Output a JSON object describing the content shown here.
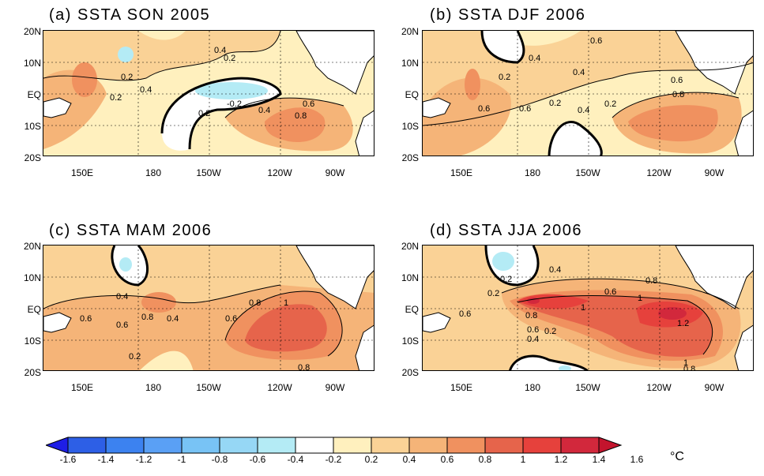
{
  "panels": [
    {
      "title": "(a) SSTA SON 2005"
    },
    {
      "title": "(b) SSTA DJF 2006"
    },
    {
      "title": "(c) SSTA MAM 2006"
    },
    {
      "title": "(d) SSTA JJA 2006"
    }
  ],
  "latitude_labels": [
    "20N",
    "10N",
    "EQ",
    "10S",
    "20S"
  ],
  "longitude_labels": [
    "150E",
    "180",
    "150W",
    "120W",
    "90W"
  ],
  "contour_labels": {
    "a": [
      "0.2",
      "0.4",
      "0.2",
      "0.4",
      "0.2",
      "-0.2",
      "0.2",
      "0.4",
      "0.6",
      "0.8"
    ],
    "b": [
      "0.6",
      "0.4",
      "0.2",
      "0.4",
      "0.6",
      "0.6",
      "0.2",
      "0.2",
      "0.4",
      "0.6",
      "0.8"
    ],
    "c": [
      "0.4",
      "0.6",
      "0.6",
      "0.8",
      "0.4",
      "0.8",
      "0.6",
      "1",
      "0.2",
      "0.8"
    ],
    "d": [
      "0.2",
      "0.2",
      "0.4",
      "0.6",
      "0.8",
      "1",
      "0.8",
      "1",
      "0.6",
      "0.4",
      "0.2",
      "1.2",
      "1",
      "0.8",
      "0.6"
    ]
  },
  "colorbar": {
    "tick_labels": [
      "-1.6",
      "-1.4",
      "-1.2",
      "-1",
      "-0.8",
      "-0.6",
      "-0.4",
      "-0.2",
      "0.2",
      "0.4",
      "0.6",
      "0.8",
      "1",
      "1.2",
      "1.4",
      "1.6"
    ],
    "unit": "°C",
    "colors": [
      "#1e1ee6",
      "#2d5fe6",
      "#3c82f0",
      "#5aa0f5",
      "#78c3f5",
      "#96d7f5",
      "#b4ebf5",
      "#ffffff",
      "#fff0be",
      "#fad296",
      "#f5b478",
      "#f0915f",
      "#e6644b",
      "#e6413c",
      "#d2283c",
      "#c3142d"
    ]
  }
}
